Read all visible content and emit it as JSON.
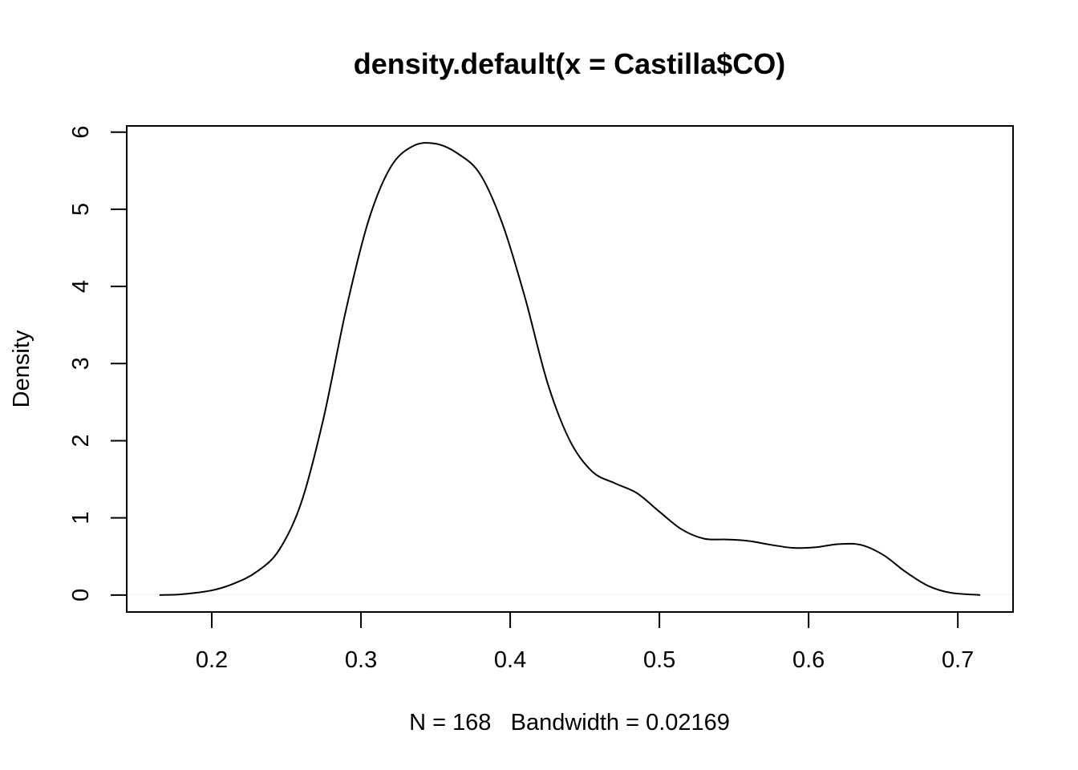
{
  "chart_data": {
    "type": "line",
    "title": "density.default(x = Castilla$CO)",
    "xlabel": "N = 168   Bandwidth = 0.02169",
    "ylabel": "Density",
    "xlim": [
      0.143,
      0.737
    ],
    "ylim": [
      -0.22,
      6.08
    ],
    "x_ticks": [
      0.2,
      0.3,
      0.4,
      0.5,
      0.6,
      0.7
    ],
    "x_tick_labels": [
      "0.2",
      "0.3",
      "0.4",
      "0.5",
      "0.6",
      "0.7"
    ],
    "y_ticks": [
      0,
      1,
      2,
      3,
      4,
      5,
      6
    ],
    "y_tick_labels": [
      "0",
      "1",
      "2",
      "3",
      "4",
      "5",
      "6"
    ],
    "grid": false,
    "legend": "none",
    "series": [
      {
        "x": [
          0.165,
          0.18,
          0.2,
          0.215,
          0.23,
          0.245,
          0.26,
          0.275,
          0.29,
          0.305,
          0.32,
          0.335,
          0.35,
          0.365,
          0.38,
          0.395,
          0.41,
          0.425,
          0.44,
          0.455,
          0.47,
          0.485,
          0.5,
          0.515,
          0.53,
          0.545,
          0.56,
          0.575,
          0.59,
          0.605,
          0.62,
          0.635,
          0.65,
          0.665,
          0.68,
          0.695,
          0.715
        ],
        "y": [
          0.0,
          0.01,
          0.06,
          0.15,
          0.3,
          0.58,
          1.2,
          2.3,
          3.7,
          4.85,
          5.55,
          5.82,
          5.85,
          5.72,
          5.45,
          4.8,
          3.85,
          2.75,
          2.0,
          1.6,
          1.45,
          1.32,
          1.08,
          0.85,
          0.73,
          0.72,
          0.7,
          0.65,
          0.61,
          0.62,
          0.66,
          0.65,
          0.52,
          0.3,
          0.12,
          0.03,
          0.0
        ]
      }
    ]
  }
}
